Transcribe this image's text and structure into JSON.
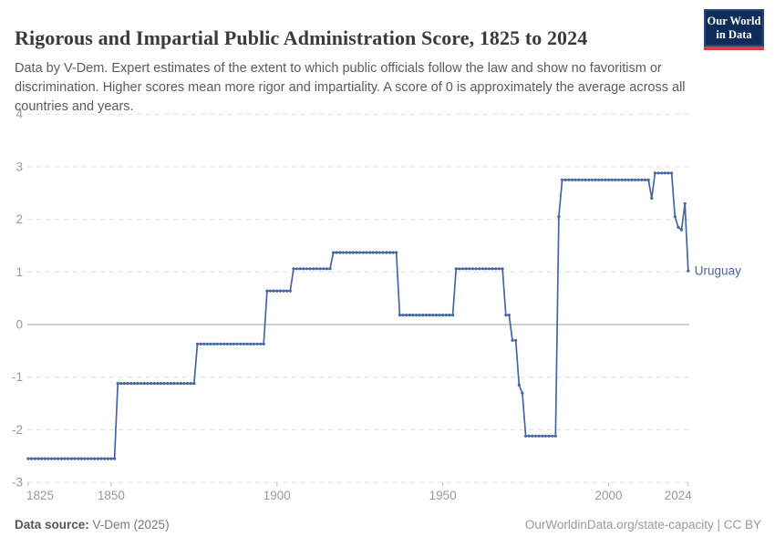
{
  "header": {
    "title": "Rigorous and Impartial Public Administration Score, 1825 to 2024",
    "subtitle": "Data by V-Dem. Expert estimates of the extent to which public officials follow the law and show no favoritism or discrimination. Higher scores mean more rigor and impartiality. A score of 0 is approximately the average across all countries and years.",
    "logo": {
      "line1": "Our World",
      "line2": "in Data"
    }
  },
  "footer": {
    "source_label": "Data source:",
    "source_value": " V-Dem (2025)",
    "credit": "OurWorldinData.org/state-capacity | CC BY"
  },
  "colors": {
    "line": "#4565a4",
    "entity_label": "#4565a4",
    "grid": "#dcdcdc",
    "zero_line": "#a3a3a3",
    "axis_text": "#999999",
    "tick_mark": "#bbbbbb",
    "logo_bg": "#102d59",
    "logo_red": "#dc3e44"
  },
  "chart_data": {
    "type": "line",
    "title": "Rigorous and Impartial Public Administration Score, 1825 to 2024",
    "xlabel": "",
    "ylabel": "",
    "xlim": [
      1825,
      2024
    ],
    "ylim": [
      -3,
      4
    ],
    "x_ticks": [
      1825,
      1850,
      1900,
      1950,
      2000,
      2024
    ],
    "y_ticks": [
      4,
      3,
      2,
      1,
      0,
      -1,
      -2,
      -3
    ],
    "grid": "horizontal dashed, solid line at 0",
    "legend_position": "end-of-line label",
    "series": [
      {
        "name": "Uruguay",
        "note": "value_segments are [start_year, end_year, score]; one data point per year",
        "value_segments": [
          [
            1825,
            1851,
            -2.55
          ],
          [
            1852,
            1875,
            -1.12
          ],
          [
            1876,
            1896,
            -0.37
          ],
          [
            1897,
            1904,
            0.64
          ],
          [
            1905,
            1916,
            1.06
          ],
          [
            1917,
            1936,
            1.37
          ],
          [
            1937,
            1953,
            0.18
          ],
          [
            1954,
            1968,
            1.06
          ],
          [
            1969,
            1970,
            0.18
          ],
          [
            1971,
            1972,
            -0.3
          ],
          [
            1973,
            1973,
            -1.15
          ],
          [
            1974,
            1974,
            -1.3
          ],
          [
            1975,
            1984,
            -2.12
          ],
          [
            1985,
            1985,
            2.05
          ],
          [
            1986,
            2012,
            2.75
          ],
          [
            2013,
            2013,
            2.4
          ],
          [
            2014,
            2019,
            2.88
          ],
          [
            2020,
            2020,
            2.05
          ],
          [
            2021,
            2021,
            1.85
          ],
          [
            2022,
            2022,
            1.8
          ],
          [
            2023,
            2023,
            2.3
          ],
          [
            2024,
            2024,
            1.02
          ]
        ]
      }
    ]
  }
}
